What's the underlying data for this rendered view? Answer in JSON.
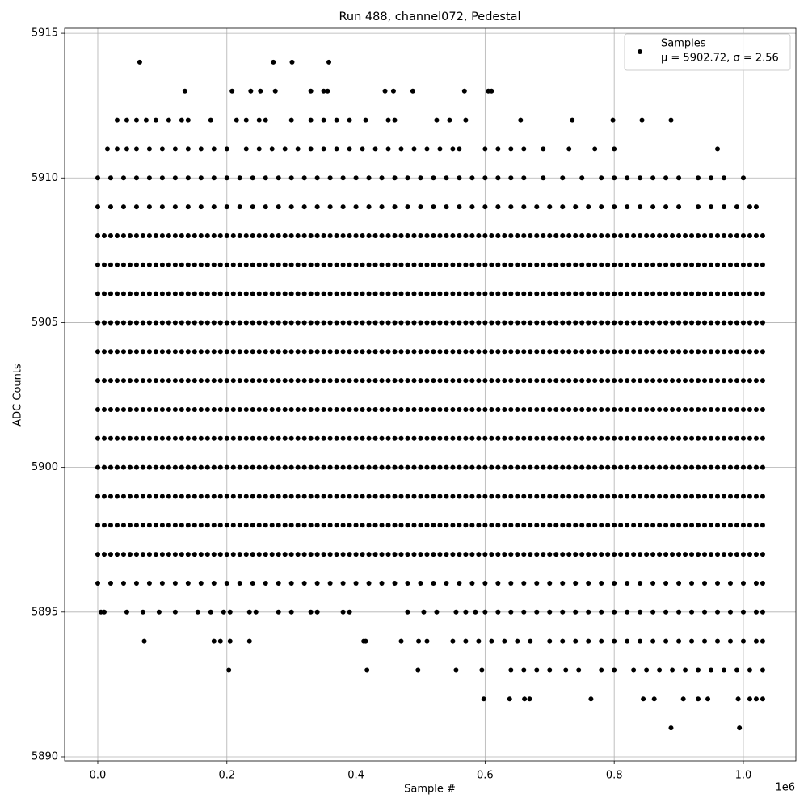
{
  "chart_data": {
    "type": "scatter",
    "title": "Run 488, channel072, Pedestal",
    "x_label": "Sample #",
    "y_label": "ADC Counts",
    "x_offset_label": "1e6",
    "legend": {
      "title": "Samples",
      "stats": "μ = 5902.72, σ = 2.56",
      "position": "upper right"
    },
    "color": "#000000",
    "grid": true,
    "xlim": [
      -51300,
      1081400
    ],
    "ylim": [
      5889.86,
      5915.17
    ],
    "xticks": [
      {
        "value": 0,
        "label": "0.0"
      },
      {
        "value": 200000,
        "label": "0.2"
      },
      {
        "value": 400000,
        "label": "0.4"
      },
      {
        "value": 600000,
        "label": "0.6"
      },
      {
        "value": 800000,
        "label": "0.8"
      },
      {
        "value": 1000000,
        "label": "1.0"
      }
    ],
    "yticks": [
      5890,
      5895,
      5900,
      5905,
      5910,
      5915
    ],
    "dense_levels": [
      5897,
      5898,
      5899,
      5900,
      5901,
      5902,
      5903,
      5904,
      5905,
      5906,
      5907,
      5908
    ],
    "dense_x": [
      0,
      10000,
      20000,
      30000,
      40000,
      50000,
      60000,
      70000,
      80000,
      90000,
      100000,
      110000,
      120000,
      130000,
      140000,
      150000,
      160000,
      170000,
      180000,
      190000,
      200000,
      210000,
      220000,
      230000,
      240000,
      250000,
      260000,
      270000,
      280000,
      290000,
      300000,
      310000,
      320000,
      330000,
      340000,
      350000,
      360000,
      370000,
      380000,
      390000,
      400000,
      410000,
      420000,
      430000,
      440000,
      450000,
      460000,
      470000,
      480000,
      490000,
      500000,
      510000,
      520000,
      530000,
      540000,
      550000,
      560000,
      570000,
      580000,
      590000,
      600000,
      610000,
      620000,
      630000,
      640000,
      650000,
      660000,
      670000,
      680000,
      690000,
      700000,
      710000,
      720000,
      730000,
      740000,
      750000,
      760000,
      770000,
      780000,
      790000,
      800000,
      810000,
      820000,
      830000,
      840000,
      850000,
      860000,
      870000,
      880000,
      890000,
      900000,
      910000,
      920000,
      930000,
      940000,
      950000,
      960000,
      970000,
      980000,
      990000,
      1000000,
      1010000,
      1020000,
      1030000
    ],
    "bands": [
      {
        "value": 5909,
        "x": [
          0,
          20000,
          40000,
          60000,
          80000,
          100000,
          120000,
          140000,
          160000,
          180000,
          200000,
          220000,
          240000,
          260000,
          280000,
          300000,
          320000,
          340000,
          360000,
          380000,
          400000,
          420000,
          440000,
          460000,
          480000,
          500000,
          520000,
          540000,
          560000,
          580000,
          600000,
          620000,
          640000,
          660000,
          680000,
          700000,
          720000,
          740000,
          760000,
          780000,
          800000,
          820000,
          840000,
          860000,
          880000,
          900000,
          930000,
          950000,
          970000,
          990000,
          1010000,
          1020000
        ]
      },
      {
        "value": 5910,
        "x": [
          0,
          20000,
          40000,
          60000,
          80000,
          100000,
          120000,
          140000,
          160000,
          180000,
          200000,
          220000,
          240000,
          260000,
          280000,
          300000,
          320000,
          340000,
          360000,
          380000,
          400000,
          420000,
          440000,
          460000,
          480000,
          500000,
          520000,
          540000,
          560000,
          580000,
          600000,
          620000,
          640000,
          660000,
          690000,
          720000,
          750000,
          780000,
          800000,
          820000,
          840000,
          860000,
          880000,
          900000,
          930000,
          950000,
          970000,
          1000000
        ]
      },
      {
        "value": 5911,
        "x": [
          15000,
          30000,
          45000,
          60000,
          80000,
          100000,
          120000,
          140000,
          160000,
          180000,
          200000,
          230000,
          250000,
          270000,
          290000,
          310000,
          330000,
          350000,
          370000,
          390000,
          410000,
          430000,
          450000,
          470000,
          490000,
          510000,
          530000,
          550000,
          560000,
          600000,
          620000,
          640000,
          660000,
          690000,
          730000,
          770000,
          800000,
          960000
        ]
      },
      {
        "value": 5912,
        "x": [
          30000,
          45000,
          60000,
          75000,
          90000,
          110000,
          130000,
          140000,
          175000,
          215000,
          230000,
          250000,
          260000,
          300000,
          330000,
          350000,
          370000,
          390000,
          415000,
          450000,
          460000,
          525000,
          545000,
          570000,
          655000,
          735000,
          798000,
          843000,
          888000
        ]
      },
      {
        "value": 5913,
        "x": [
          135000,
          208000,
          237000,
          252000,
          275000,
          330000,
          350000,
          356000,
          445000,
          458000,
          488000,
          568000,
          605000,
          610000
        ]
      },
      {
        "value": 5914,
        "x": [
          65000,
          272000,
          301000,
          358000
        ]
      },
      {
        "value": 5896,
        "x": [
          0,
          20000,
          40000,
          60000,
          80000,
          100000,
          120000,
          140000,
          160000,
          180000,
          200000,
          220000,
          240000,
          260000,
          280000,
          300000,
          320000,
          340000,
          360000,
          380000,
          400000,
          420000,
          440000,
          460000,
          480000,
          500000,
          520000,
          540000,
          560000,
          580000,
          600000,
          620000,
          640000,
          660000,
          680000,
          700000,
          720000,
          740000,
          760000,
          780000,
          800000,
          820000,
          840000,
          860000,
          880000,
          900000,
          920000,
          940000,
          960000,
          980000,
          1000000,
          1020000,
          1030000
        ]
      },
      {
        "value": 5895,
        "x": [
          5000,
          10000,
          45000,
          70000,
          95000,
          120000,
          155000,
          175000,
          195000,
          205000,
          235000,
          245000,
          280000,
          300000,
          330000,
          340000,
          380000,
          390000,
          480000,
          505000,
          525000,
          555000,
          570000,
          585000,
          600000,
          620000,
          640000,
          660000,
          680000,
          700000,
          720000,
          740000,
          760000,
          780000,
          800000,
          820000,
          840000,
          860000,
          880000,
          900000,
          920000,
          940000,
          960000,
          980000,
          1000000,
          1020000,
          1030000
        ]
      },
      {
        "value": 5894,
        "x": [
          72000,
          180000,
          190000,
          205000,
          235000,
          412000,
          415000,
          470000,
          497000,
          510000,
          550000,
          570000,
          590000,
          610000,
          630000,
          650000,
          670000,
          700000,
          720000,
          740000,
          760000,
          780000,
          800000,
          820000,
          840000,
          860000,
          880000,
          900000,
          920000,
          940000,
          960000,
          980000,
          1000000,
          1020000,
          1030000
        ]
      },
      {
        "value": 5893,
        "x": [
          203000,
          417000,
          496000,
          555000,
          595000,
          640000,
          660000,
          680000,
          700000,
          725000,
          745000,
          780000,
          800000,
          830000,
          850000,
          870000,
          890000,
          910000,
          930000,
          950000,
          970000,
          990000,
          1010000,
          1030000
        ]
      },
      {
        "value": 5892,
        "x": [
          598000,
          638000,
          661000,
          669000,
          764000,
          845000,
          862000,
          907000,
          930000,
          945000,
          992000,
          1010000,
          1020000,
          1030000
        ]
      },
      {
        "value": 5891,
        "x": [
          888000,
          994000
        ]
      }
    ]
  }
}
